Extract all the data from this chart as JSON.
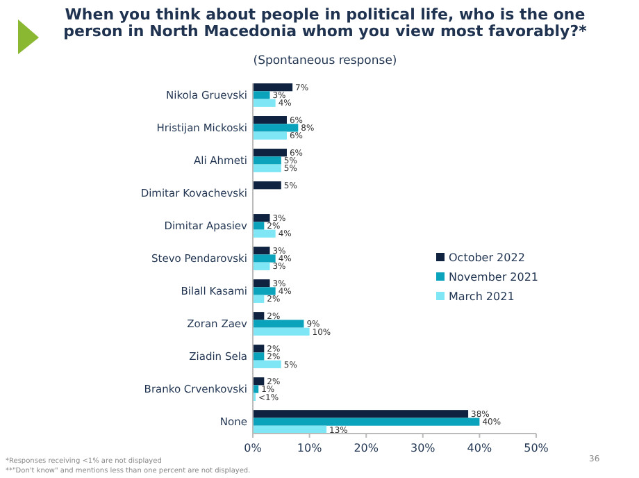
{
  "chart_data": {
    "type": "bar",
    "orientation": "horizontal",
    "title": "When you think about people in political life, who is the one person in North Macedonia whom you view most favorably?*",
    "subtitle": "(Spontaneous response)",
    "categories": [
      "Nikola Gruevski",
      "Hristijan Mickoski",
      "Ali Ahmeti",
      "Dimitar Kovachevski",
      "Dimitar Apasiev",
      "Stevo Pendarovski",
      "Bilall Kasami",
      "Zoran Zaev",
      "Ziadin Sela",
      "Branko Crvenkovski",
      "None"
    ],
    "series": [
      {
        "name": "October 2022",
        "color": "#0f2340",
        "values": [
          7,
          6,
          6,
          5,
          3,
          3,
          3,
          2,
          2,
          2,
          38
        ],
        "value_labels": [
          "7%",
          "6%",
          "6%",
          "5%",
          "3%",
          "3%",
          "3%",
          "2%",
          "2%",
          "2%",
          "38%"
        ]
      },
      {
        "name": "November 2021",
        "color": "#0aa3bb",
        "values": [
          3,
          8,
          5,
          null,
          2,
          4,
          4,
          9,
          2,
          1,
          40
        ],
        "value_labels": [
          "3%",
          "8%",
          "5%",
          null,
          "2%",
          "4%",
          "4%",
          "9%",
          "2%",
          "1%",
          "40%"
        ]
      },
      {
        "name": "March 2021",
        "color": "#7fe6f5",
        "values": [
          4,
          6,
          5,
          null,
          4,
          3,
          2,
          10,
          5,
          0.5,
          13
        ],
        "value_labels": [
          "4%",
          "6%",
          "5%",
          null,
          "4%",
          "3%",
          "2%",
          "10%",
          "5%",
          "<1%",
          "13%"
        ]
      }
    ],
    "xlim": [
      0,
      50
    ],
    "xticks": [
      {
        "value": 0,
        "label": "0%"
      },
      {
        "value": 10,
        "label": "10%"
      },
      {
        "value": 20,
        "label": "20%"
      },
      {
        "value": 30,
        "label": "30%"
      },
      {
        "value": 40,
        "label": "40%"
      },
      {
        "value": 50,
        "label": "50%"
      }
    ],
    "legend": "right",
    "grid": false,
    "annotations": [
      "*Responses receiving <1% are not displayed",
      "**\"Don't know\" and mentions less than one percent are not displayed.",
      "36"
    ]
  }
}
